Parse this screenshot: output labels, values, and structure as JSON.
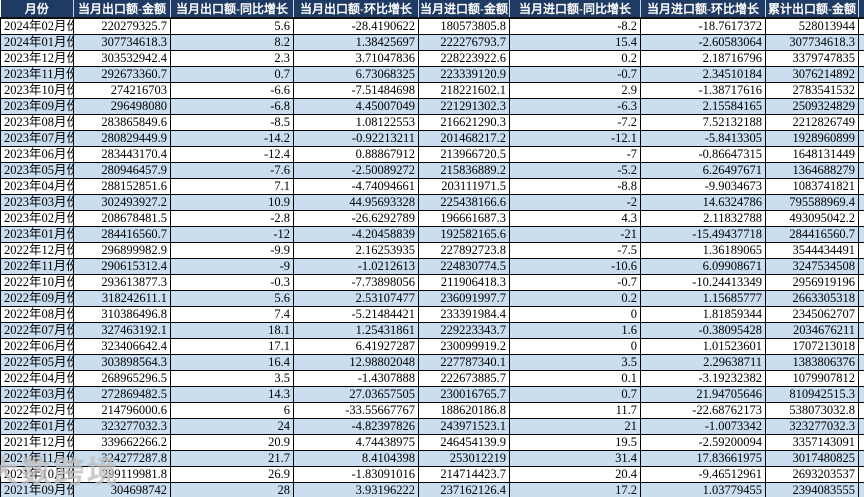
{
  "table": {
    "columns": [
      {
        "key": "month",
        "label": "月份"
      },
      {
        "key": "export_amount",
        "label": "当月出口额-金额"
      },
      {
        "key": "export_yoy_growth",
        "label": "当月出口额-同比增长"
      },
      {
        "key": "export_mom_growth",
        "label": "当月出口额-环比增长"
      },
      {
        "key": "import_amount",
        "label": "当月进口额-金额"
      },
      {
        "key": "import_yoy_growth",
        "label": "当月进口额-同比增长"
      },
      {
        "key": "import_mom_growth",
        "label": "当月进口额-环比增长"
      },
      {
        "key": "cumulative_export_amount",
        "label": "累计出口额-金额"
      }
    ],
    "rows": [
      [
        "2024年02月份",
        "220279325.7",
        "5.6",
        "-28.4190622",
        "180573805.8",
        "-8.2",
        "-18.7617372",
        "528013944"
      ],
      [
        "2024年01月份",
        "307734618.3",
        "8.2",
        "1.38425697",
        "222276793.7",
        "15.4",
        "-2.60583064",
        "307734618.3"
      ],
      [
        "2023年12月份",
        "303532942.4",
        "2.3",
        "3.71047836",
        "228223922.6",
        "0.2",
        "2.18716796",
        "3379747835"
      ],
      [
        "2023年11月份",
        "292673360.7",
        "0.7",
        "6.73068325",
        "223339120.9",
        "-0.7",
        "2.34510184",
        "3076214892"
      ],
      [
        "2023年10月份",
        "274216703",
        "-6.6",
        "-7.51484698",
        "218221602.1",
        "2.9",
        "-1.38717616",
        "2783541532"
      ],
      [
        "2023年09月份",
        "296498080",
        "-6.8",
        "4.45007049",
        "221291302.3",
        "-6.3",
        "2.15584165",
        "2509324829"
      ],
      [
        "2023年08月份",
        "283865849.6",
        "-8.5",
        "1.08122553",
        "216621290.3",
        "-7.2",
        "7.52132188",
        "2212826749"
      ],
      [
        "2023年07月份",
        "280829449.9",
        "-14.2",
        "-0.92213211",
        "201468217.2",
        "-12.1",
        "-5.8413305",
        "1928960899"
      ],
      [
        "2023年06月份",
        "283443170.4",
        "-12.4",
        "0.88867912",
        "213966720.5",
        "-7",
        "-0.86647315",
        "1648131449"
      ],
      [
        "2023年05月份",
        "280946457.9",
        "-7.6",
        "-2.50089272",
        "215836889.2",
        "-5.2",
        "6.26497671",
        "1364688279"
      ],
      [
        "2023年04月份",
        "288152851.6",
        "7.1",
        "-4.74094661",
        "203111971.5",
        "-8.8",
        "-9.9034673",
        "1083741821"
      ],
      [
        "2023年03月份",
        "302493927.2",
        "10.9",
        "44.95693328",
        "225438166.6",
        "-2",
        "14.6324786",
        "795588969.4"
      ],
      [
        "2023年02月份",
        "208678481.5",
        "-2.8",
        "-26.6292789",
        "196661687.3",
        "4.3",
        "2.11832788",
        "493095042.2"
      ],
      [
        "2023年01月份",
        "284416560.7",
        "-12",
        "-4.20458839",
        "192582165.6",
        "-21",
        "-15.49437718",
        "284416560.7"
      ],
      [
        "2022年12月份",
        "296899982.9",
        "-9.9",
        "2.16253935",
        "227892723.8",
        "-7.5",
        "1.36189065",
        "3544434491"
      ],
      [
        "2022年11月份",
        "290615312.4",
        "-9",
        "-1.0212613",
        "224830774.5",
        "-10.6",
        "6.09908671",
        "3247534508"
      ],
      [
        "2022年10月份",
        "293613877.3",
        "-0.3",
        "-7.73898056",
        "211906418.3",
        "-0.7",
        "-10.24413349",
        "2956919196"
      ],
      [
        "2022年09月份",
        "318242611.1",
        "5.6",
        "2.53107477",
        "236091997.7",
        "0.2",
        "1.15685777",
        "2663305318"
      ],
      [
        "2022年08月份",
        "310386496.8",
        "7.4",
        "-5.21484421",
        "233391984.4",
        "0",
        "1.81859344",
        "2345062707"
      ],
      [
        "2022年07月份",
        "327463192.1",
        "18.1",
        "1.25431861",
        "229223343.7",
        "1.6",
        "-0.38095428",
        "2034676211"
      ],
      [
        "2022年06月份",
        "323406642.4",
        "17.1",
        "6.41927287",
        "230099919.2",
        "0",
        "1.01523601",
        "1707213018"
      ],
      [
        "2022年05月份",
        "303898564.3",
        "16.4",
        "12.98802048",
        "227787340.1",
        "3.5",
        "2.29638711",
        "1383806376"
      ],
      [
        "2022年04月份",
        "268965296.5",
        "3.5",
        "-1.4307888",
        "222673885.7",
        "0.1",
        "-3.19232382",
        "1079907812"
      ],
      [
        "2022年03月份",
        "272869482.5",
        "14.3",
        "27.03657505",
        "230016765.7",
        "0.7",
        "21.94705646",
        "810942515.3"
      ],
      [
        "2022年02月份",
        "214796000.6",
        "6",
        "-33.55667767",
        "188620186.8",
        "11.7",
        "-22.68762173",
        "538073032.8"
      ],
      [
        "2022年01月份",
        "323277032.3",
        "24",
        "-4.82397826",
        "243971523.1",
        "21",
        "-1.0073342",
        "323277032.3"
      ],
      [
        "2021年12月份",
        "339662266.2",
        "20.9",
        "4.74438975",
        "246454139.9",
        "19.5",
        "-2.59200094",
        "3357143091"
      ],
      [
        "2021年11月份",
        "324277287.8",
        "21.7",
        "8.4104398",
        "253012219",
        "31.4",
        "17.83661975",
        "3017480825"
      ],
      [
        "2021年10月份",
        "299119981.8",
        "26.9",
        "-1.83091016",
        "214714423.7",
        "20.4",
        "-9.46512961",
        "2693203537"
      ],
      [
        "2021年09月份",
        "304698742",
        "28",
        "3.93196222",
        "237162126.4",
        "17.2",
        "1.03779455",
        "2394083555"
      ]
    ]
  },
  "watermark": {
    "text": "大数跨境"
  },
  "colors": {
    "header_bg": "#1F3B63",
    "header_text": "#FFFFFF",
    "stripe_bg": "#CBDEF0",
    "row_bg": "#FFFFFF",
    "border": "#000000"
  }
}
